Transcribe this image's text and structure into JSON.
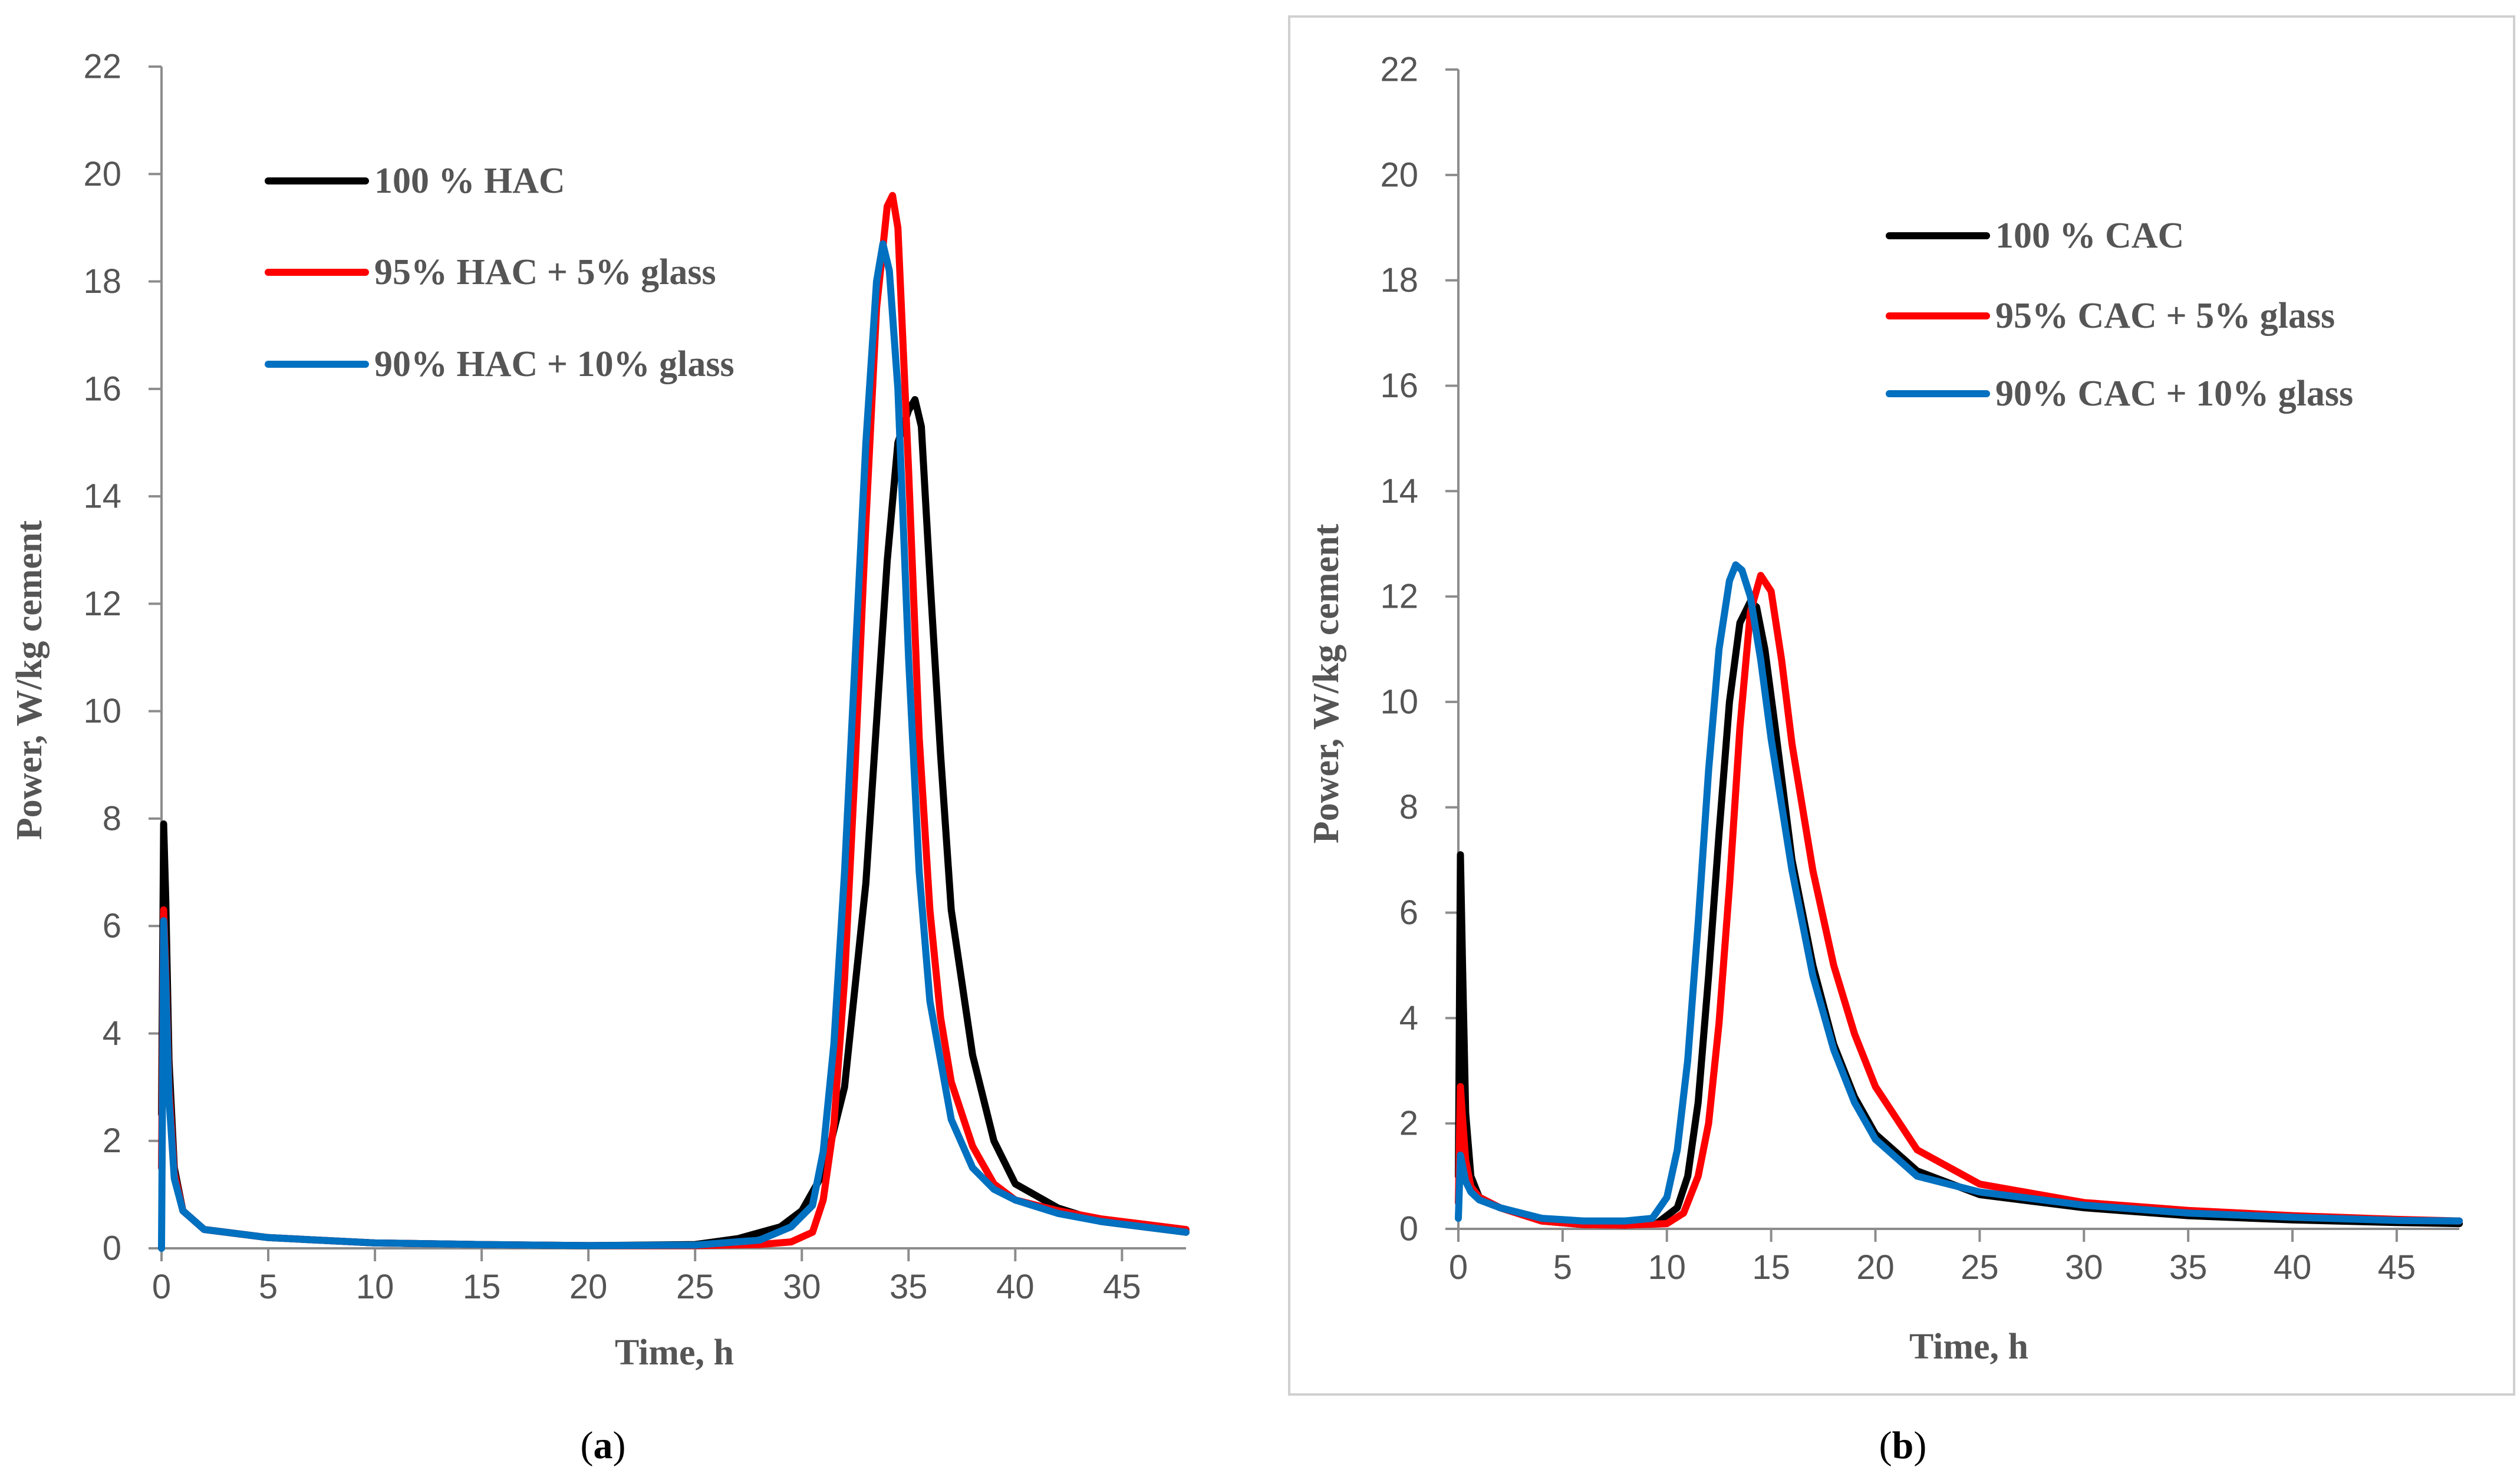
{
  "chart_data": [
    {
      "type": "line",
      "caption": "(a)",
      "caption_bold": "a",
      "xlabel": "Time, h",
      "ylabel": "Power, W/kg cement",
      "xlim": [
        0,
        48
      ],
      "ylim": [
        0,
        22
      ],
      "xticks": [
        0,
        5,
        10,
        15,
        20,
        25,
        30,
        35,
        40,
        45
      ],
      "xtick_labels": [
        "0",
        "5",
        "10",
        "15",
        "20",
        "25",
        "30",
        "35",
        "40",
        "45"
      ],
      "yticks": [
        0,
        2,
        4,
        6,
        8,
        10,
        12,
        14,
        16,
        18,
        20,
        22
      ],
      "ytick_labels": [
        "0",
        "2",
        "4",
        "6",
        "8",
        "10",
        "12",
        "14",
        "16",
        "18",
        "20",
        "22"
      ],
      "grid": false,
      "legend_position": "top-left",
      "series": [
        {
          "name": "100 % HAC",
          "color": "#000000",
          "x": [
            0,
            0.1,
            0.2,
            0.35,
            0.6,
            1,
            2,
            5,
            10,
            15,
            20,
            25,
            27,
            29,
            30,
            31,
            32,
            33,
            33.5,
            34,
            34.5,
            35,
            35.3,
            35.6,
            36,
            36.5,
            37,
            38,
            39,
            40,
            42,
            44,
            46,
            48
          ],
          "y": [
            2.5,
            7.9,
            6.5,
            3.5,
            1.5,
            0.7,
            0.35,
            0.2,
            0.1,
            0.07,
            0.05,
            0.07,
            0.18,
            0.4,
            0.7,
            1.4,
            3.0,
            6.8,
            9.8,
            12.8,
            15.0,
            15.6,
            15.8,
            15.3,
            12.5,
            9.2,
            6.3,
            3.6,
            2.0,
            1.2,
            0.75,
            0.5,
            0.4,
            0.3
          ]
        },
        {
          "name": "95% HAC + 5% glass",
          "color": "#ff0000",
          "x": [
            0,
            0.1,
            0.2,
            0.35,
            0.6,
            1,
            2,
            5,
            10,
            15,
            20,
            25,
            28,
            29.5,
            30.5,
            31,
            31.5,
            32,
            32.5,
            33,
            33.5,
            34,
            34.25,
            34.5,
            35,
            35.5,
            36,
            36.5,
            37,
            38,
            39,
            40,
            42,
            44,
            46,
            48
          ],
          "y": [
            1.5,
            6.3,
            5.2,
            3.0,
            1.4,
            0.7,
            0.35,
            0.2,
            0.1,
            0.07,
            0.05,
            0.05,
            0.07,
            0.12,
            0.3,
            0.9,
            2.3,
            5.0,
            9.0,
            13.5,
            17.5,
            19.4,
            19.6,
            19.0,
            14.5,
            9.5,
            6.3,
            4.3,
            3.1,
            1.9,
            1.2,
            0.9,
            0.7,
            0.55,
            0.45,
            0.35
          ]
        },
        {
          "name": "90% HAC + 10% glass",
          "color": "#0070c0",
          "x": [
            0,
            0.1,
            0.2,
            0.35,
            0.6,
            1,
            2,
            5,
            10,
            15,
            20,
            25,
            28,
            29.5,
            30.5,
            31,
            31.5,
            32,
            32.5,
            33,
            33.5,
            33.8,
            34.1,
            34.5,
            35,
            35.5,
            36,
            37,
            38,
            39,
            40,
            42,
            44,
            46,
            48
          ],
          "y": [
            0,
            6.1,
            5.0,
            2.8,
            1.3,
            0.7,
            0.35,
            0.2,
            0.1,
            0.07,
            0.05,
            0.06,
            0.15,
            0.4,
            0.8,
            1.8,
            3.8,
            7.0,
            11.0,
            15.0,
            18.0,
            18.7,
            18.2,
            16.0,
            11.0,
            7.0,
            4.6,
            2.4,
            1.5,
            1.1,
            0.9,
            0.65,
            0.5,
            0.4,
            0.3
          ]
        }
      ]
    },
    {
      "type": "line",
      "caption": "(b)",
      "caption_bold": "b",
      "xlabel": "Time, h",
      "ylabel": "Power, W/kg cement",
      "xlim": [
        0,
        48
      ],
      "ylim": [
        0,
        22
      ],
      "xticks": [
        0,
        5,
        10,
        15,
        20,
        25,
        30,
        35,
        40,
        45
      ],
      "xtick_labels": [
        "0",
        "5",
        "10",
        "15",
        "20",
        "25",
        "30",
        "35",
        "40",
        "45"
      ],
      "yticks": [
        0,
        2,
        4,
        6,
        8,
        10,
        12,
        14,
        16,
        18,
        20,
        22
      ],
      "ytick_labels": [
        "0",
        "2",
        "4",
        "6",
        "8",
        "10",
        "12",
        "14",
        "16",
        "18",
        "20",
        "22"
      ],
      "grid": false,
      "legend_position": "top-center",
      "series": [
        {
          "name": "100 % CAC",
          "color": "#000000",
          "x": [
            0,
            0.1,
            0.2,
            0.35,
            0.6,
            1,
            2,
            4,
            6,
            8,
            9.5,
            10.5,
            11,
            11.5,
            12,
            12.5,
            13,
            13.5,
            14,
            14.3,
            14.7,
            15.2,
            16,
            17,
            18,
            19,
            20,
            22,
            25,
            30,
            35,
            40,
            45,
            48
          ],
          "y": [
            1.0,
            7.1,
            5.0,
            2.2,
            1.0,
            0.6,
            0.4,
            0.15,
            0.08,
            0.07,
            0.1,
            0.4,
            1.0,
            2.4,
            4.8,
            7.5,
            10.0,
            11.5,
            11.9,
            11.8,
            11.0,
            9.5,
            7.0,
            5.0,
            3.5,
            2.5,
            1.8,
            1.1,
            0.65,
            0.4,
            0.25,
            0.17,
            0.12,
            0.1
          ]
        },
        {
          "name": "95% CAC + 5% glass",
          "color": "#ff0000",
          "x": [
            0,
            0.1,
            0.2,
            0.35,
            0.6,
            1,
            2,
            4,
            6,
            8,
            10,
            10.8,
            11.5,
            12,
            12.5,
            13,
            13.5,
            14,
            14.5,
            15,
            15.5,
            16,
            17,
            18,
            19,
            20,
            22,
            25,
            30,
            35,
            40,
            45,
            48
          ],
          "y": [
            0.5,
            2.7,
            2.1,
            1.3,
            0.8,
            0.6,
            0.4,
            0.15,
            0.08,
            0.07,
            0.1,
            0.3,
            1.0,
            2.0,
            3.9,
            6.5,
            9.5,
            11.7,
            12.4,
            12.1,
            10.8,
            9.2,
            6.8,
            5.0,
            3.7,
            2.7,
            1.5,
            0.85,
            0.5,
            0.35,
            0.25,
            0.18,
            0.15
          ]
        },
        {
          "name": "90% CAC + 10% glass",
          "color": "#0070c0",
          "x": [
            0,
            0.1,
            0.2,
            0.35,
            0.6,
            1,
            2,
            4,
            6,
            8,
            9.3,
            10,
            10.5,
            11,
            11.5,
            12,
            12.5,
            13,
            13.3,
            13.6,
            14,
            14.5,
            15,
            16,
            17,
            18,
            19,
            20,
            22,
            25,
            30,
            35,
            40,
            45,
            48
          ],
          "y": [
            0.2,
            1.4,
            1.2,
            0.9,
            0.7,
            0.55,
            0.4,
            0.2,
            0.15,
            0.15,
            0.2,
            0.6,
            1.5,
            3.2,
            5.8,
            8.7,
            11.0,
            12.3,
            12.6,
            12.5,
            12.0,
            10.8,
            9.3,
            6.8,
            4.8,
            3.4,
            2.4,
            1.7,
            1.0,
            0.7,
            0.45,
            0.3,
            0.22,
            0.16,
            0.15
          ]
        }
      ]
    }
  ]
}
